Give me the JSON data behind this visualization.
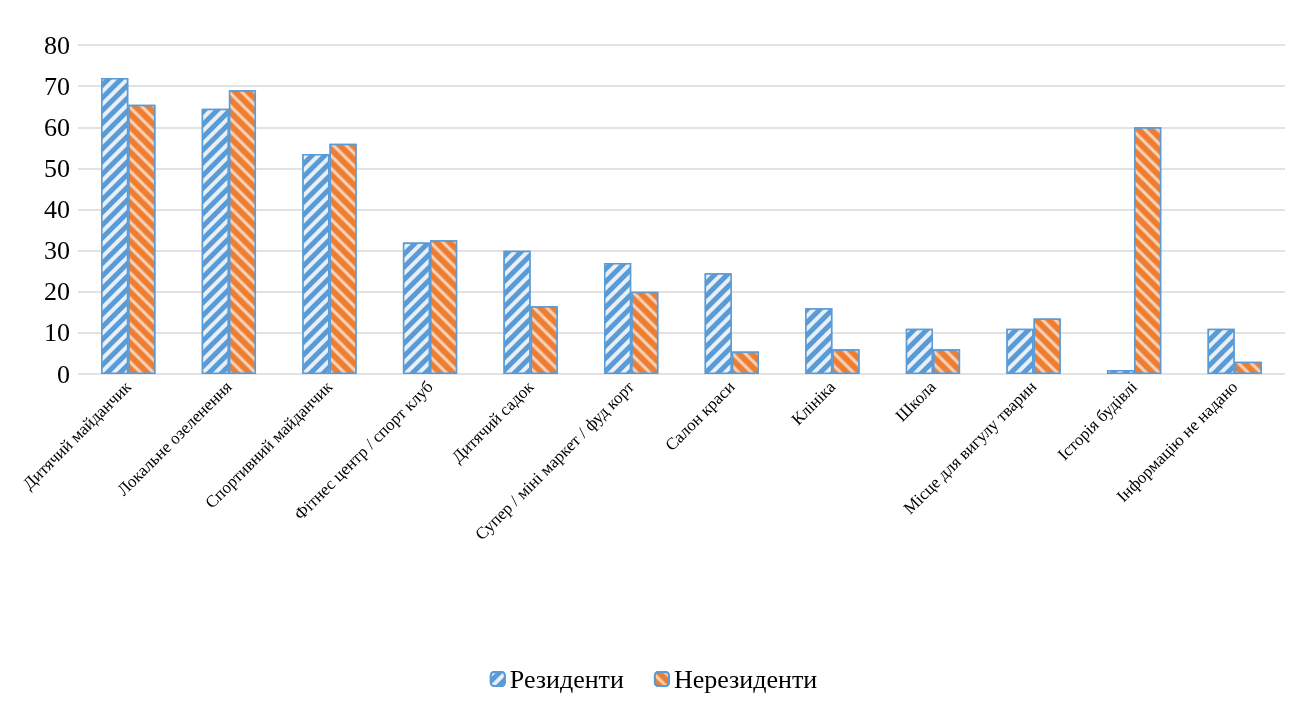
{
  "chart_data": {
    "type": "bar",
    "categories": [
      "Дитячий майданчик",
      "Локальне озеленення",
      "Спортивний майданчик",
      "Фітнес центр / спорт клуб",
      "Дитячий садок",
      "Супер / міні маркет / фуд корт",
      "Салон краси",
      "Клініка",
      "Школа",
      "Місце для вигулу тварин",
      "Історія будівлі",
      "Інформацію не надано"
    ],
    "series": [
      {
        "name": "Резиденти",
        "color": "#5b9bd5",
        "values": [
          72,
          64.5,
          53.5,
          32,
          30,
          27,
          24.5,
          16,
          11,
          11,
          1,
          11
        ]
      },
      {
        "name": "Нерезиденти",
        "color": "#ed7d31",
        "values": [
          65.5,
          69,
          56,
          32.5,
          16.5,
          20,
          5.5,
          6,
          6,
          13.5,
          60,
          3
        ]
      }
    ],
    "ylim": [
      0,
      80
    ],
    "yticks": [
      0,
      10,
      20,
      30,
      40,
      50,
      60,
      70,
      80
    ],
    "grid": "y",
    "legend": "bottom"
  }
}
